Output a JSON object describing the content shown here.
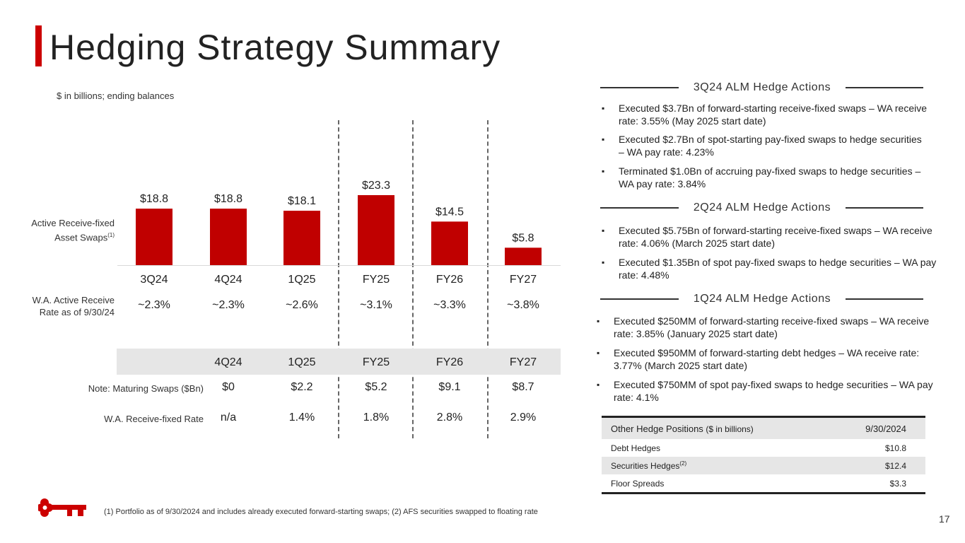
{
  "title": "Hedging Strategy Summary",
  "units_note": "$ in billions; ending balances",
  "row_labels": {
    "active_swaps": "Active Receive-fixed Asset Swaps",
    "active_swaps_sup": "(1)",
    "wa_active_rate": "W.A. Active Receive Rate as of 9/30/24",
    "maturing_swaps": "Note: Maturing Swaps ($Bn)",
    "wa_receive_fixed": "W.A. Receive-fixed Rate"
  },
  "chart_data": {
    "type": "bar",
    "title": "",
    "categories": [
      "3Q24",
      "4Q24",
      "1Q25",
      "FY25",
      "FY26",
      "FY27"
    ],
    "values": [
      18.8,
      18.8,
      18.1,
      23.3,
      14.5,
      5.8
    ],
    "value_labels": [
      "$18.8",
      "$18.8",
      "$18.1",
      "$23.3",
      "$14.5",
      "$5.8"
    ],
    "ylabel": "Active Receive-fixed Asset Swaps",
    "ylim": [
      0,
      26
    ],
    "bar_color": "#c00000"
  },
  "wa_active_rates": [
    "~2.3%",
    "~2.3%",
    "~2.6%",
    "~3.1%",
    "~3.3%",
    "~3.8%"
  ],
  "maturity_table": {
    "headers": [
      "4Q24",
      "1Q25",
      "FY25",
      "FY26",
      "FY27"
    ],
    "maturing_swaps": [
      "$0",
      "$2.2",
      "$5.2",
      "$9.1",
      "$8.7"
    ],
    "wa_receive_fixed_rate": [
      "n/a",
      "1.4%",
      "1.8%",
      "2.8%",
      "2.9%"
    ]
  },
  "hedge_sections": [
    {
      "heading": "3Q24 ALM Hedge Actions",
      "bullets": [
        "Executed $3.7Bn of forward-starting receive-fixed swaps – WA receive rate: 3.55% (May 2025 start date)",
        "Executed $2.7Bn of spot-starting pay-fixed swaps to hedge securities – WA pay rate: 4.23%",
        "Terminated $1.0Bn of accruing pay-fixed swaps to hedge securities – WA pay rate: 3.84%"
      ]
    },
    {
      "heading": "2Q24 ALM Hedge Actions",
      "bullets": [
        "Executed $5.75Bn of forward-starting receive-fixed swaps – WA receive rate: 4.06% (March 2025 start date)",
        "Executed $1.35Bn of spot pay-fixed swaps to hedge securities – WA pay rate: 4.48%"
      ]
    },
    {
      "heading": "1Q24 ALM Hedge Actions",
      "bullets": [
        "Executed $250MM of forward-starting receive-fixed swaps – WA receive rate: 3.85% (January 2025 start date)",
        "Executed $950MM of forward-starting debt hedges – WA receive rate: 3.77% (March 2025 start date)",
        "Executed $750MM of spot pay-fixed swaps to hedge securities – WA pay rate: 4.1%"
      ]
    }
  ],
  "other_hedges": {
    "header_label": "Other Hedge Positions",
    "header_units": "($ in billions)",
    "header_date": "9/30/2024",
    "rows": [
      {
        "label": "Debt Hedges",
        "sup": "",
        "value": "$10.8"
      },
      {
        "label": "Securities Hedges",
        "sup": "(2)",
        "value": "$12.4"
      },
      {
        "label": "Floor Spreads",
        "sup": "",
        "value": "$3.3"
      }
    ]
  },
  "footnote": "(1) Portfolio as of 9/30/2024 and includes already executed forward-starting swaps; (2) AFS securities swapped to floating rate",
  "page_number": "17"
}
